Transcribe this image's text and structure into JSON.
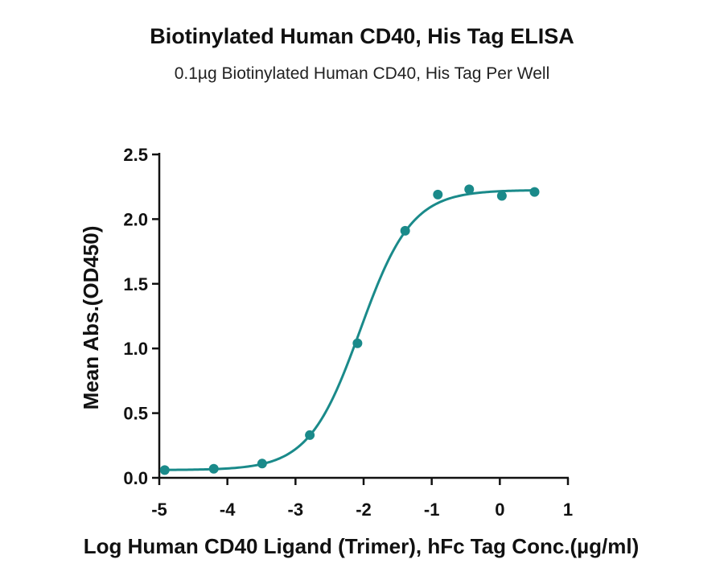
{
  "chart_data": {
    "type": "scatter",
    "title": "Biotinylated Human CD40, His Tag ELISA",
    "subtitle": "0.1µg Biotinylated Human CD40, His Tag Per Well",
    "xlabel": "Log Human CD40 Ligand (Trimer), hFc Tag Conc.(µg/ml)",
    "ylabel": "Mean Abs.(OD450)",
    "xlim": [
      -5,
      1
    ],
    "ylim": [
      0,
      2.5
    ],
    "xticks": [
      -5,
      -4,
      -3,
      -2,
      -1,
      0,
      1
    ],
    "xtick_labels": [
      "-5",
      "-4",
      "-3",
      "-2",
      "-1",
      "0",
      "1"
    ],
    "yticks": [
      0,
      0.5,
      1,
      1.5,
      2,
      2.5
    ],
    "ytick_labels": [
      "0.0",
      "0.5",
      "1.0",
      "1.5",
      "2.0",
      "2.5"
    ],
    "series": [
      {
        "color": "#1a8a8a",
        "x": [
          -4.92,
          -4.2,
          -3.49,
          -2.79,
          -2.09,
          -1.39,
          -0.91,
          -0.45,
          0.03,
          0.51
        ],
        "y": [
          0.06,
          0.07,
          0.11,
          0.33,
          1.04,
          1.91,
          2.19,
          2.23,
          2.18,
          2.21
        ],
        "fit": {
          "model": "4PL",
          "bottom": 0.06,
          "top": 2.225,
          "logEC50": -2.05,
          "hill": 1.15
        }
      }
    ],
    "grid": false
  }
}
